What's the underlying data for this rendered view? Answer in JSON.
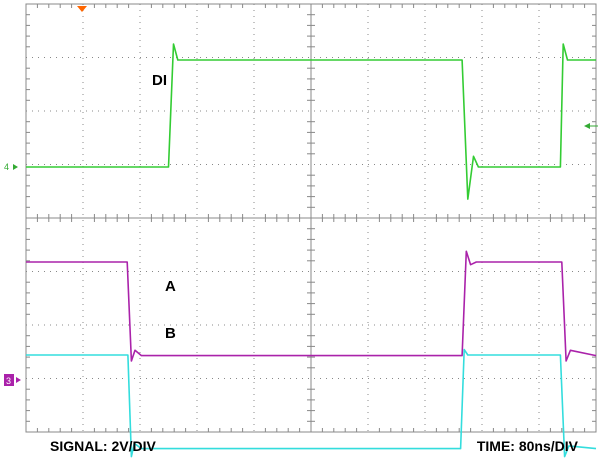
{
  "chart_data": {
    "type": "line",
    "title": "",
    "xlabel": "",
    "ylabel": "",
    "grid": true,
    "divisions": {
      "x": 10,
      "y": 8
    },
    "x_unit": "ns",
    "x_per_div": 80,
    "y_per_div": 2,
    "xlim": [
      0,
      800
    ],
    "ylim": [
      -8,
      8
    ],
    "trace_labels": {
      "di": "DI",
      "a": "A",
      "b": "B"
    },
    "marker_labels": {
      "ch4": "4",
      "ch3": "3"
    },
    "colors": {
      "di": "#33cc33",
      "a": "#33dddd",
      "b": "#aa22aa",
      "grid": "#888888",
      "trigger": "#ff6600"
    },
    "series": [
      {
        "key": "di",
        "x": [
          0,
          200,
          207,
          213,
          240,
          612,
          620,
          628,
          635,
          650,
          750,
          754,
          760,
          800
        ],
        "y": [
          0,
          0,
          4.6,
          4.0,
          4.0,
          4.0,
          -1.2,
          0.4,
          0.0,
          0.0,
          0.0,
          4.6,
          4.0,
          4.0
        ]
      },
      {
        "key": "a",
        "x": [
          0,
          143,
          148,
          152,
          162,
          610,
          615,
          620,
          630,
          690,
          750,
          756,
          762,
          800
        ],
        "y": [
          0,
          0,
          -3.8,
          -3.3,
          -3.5,
          -3.5,
          0.2,
          0,
          0,
          0,
          0,
          -3.8,
          -3.4,
          -3.5
        ]
      },
      {
        "key": "b",
        "x": [
          0,
          142,
          148,
          153,
          162,
          612,
          618,
          624,
          632,
          690,
          752,
          758,
          764,
          800
        ],
        "y": [
          0,
          0,
          -3.7,
          -3.3,
          -3.5,
          -3.5,
          0.4,
          -0.1,
          0,
          0,
          0,
          -3.7,
          -3.3,
          -3.5
        ]
      }
    ],
    "captions": {
      "signal": "SIGNAL: 2V/DIV",
      "time": "TIME: 80ns/DIV"
    }
  }
}
